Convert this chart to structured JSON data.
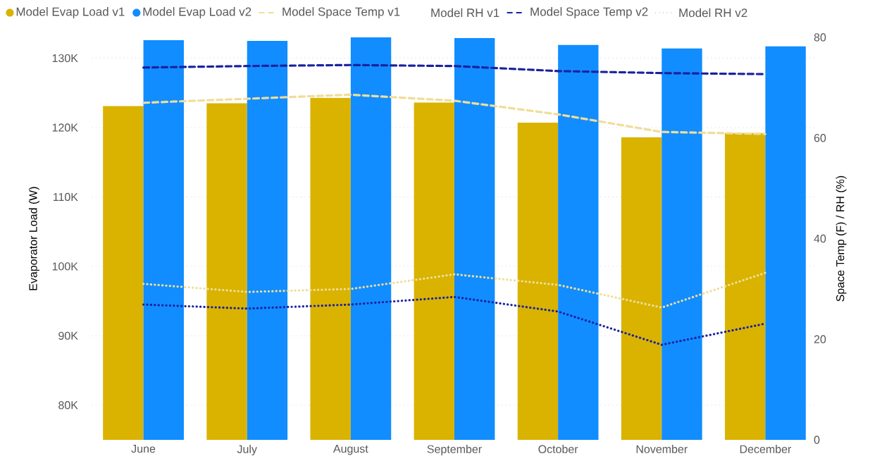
{
  "chart_data": {
    "type": "bar",
    "categories": [
      "June",
      "July",
      "August",
      "September",
      "October",
      "November",
      "December"
    ],
    "ylabel": "Evaporator Load (W)",
    "y2label": "Space Temp (F) / RH (%)",
    "ylim": [
      75000,
      133000
    ],
    "yticks": [
      {
        "value": 80000,
        "label": "80K"
      },
      {
        "value": 90000,
        "label": "90K"
      },
      {
        "value": 100000,
        "label": "100K"
      },
      {
        "value": 110000,
        "label": "110K"
      },
      {
        "value": 120000,
        "label": "120K"
      },
      {
        "value": 130000,
        "label": "130K"
      }
    ],
    "y2lim": [
      0,
      80
    ],
    "y2ticks": [
      0,
      20,
      40,
      60,
      80
    ],
    "grid": "y",
    "legend": "top left",
    "marker": "none",
    "series": [
      {
        "name": "Model Evap Load v1",
        "color": "#d9b300",
        "values": [
          123100,
          123500,
          124300,
          123600,
          120700,
          118600,
          119200
        ]
      },
      {
        "name": "Model Evap Load v2",
        "color": "#118dff",
        "values": [
          132600,
          132500,
          133000,
          132900,
          131900,
          131400,
          131700
        ]
      },
      {
        "name": "Model Space Temp v1",
        "type": "line",
        "axis": "y2",
        "line_style": "dashed",
        "color": "#f0dd99",
        "values": [
          67.0,
          67.8,
          68.6,
          67.4,
          64.7,
          61.2,
          60.8
        ]
      },
      {
        "name": "Model RH v1",
        "type": "line",
        "axis": "y2",
        "line_style": "dotted",
        "color": "#f0dd99",
        "values": [
          31.0,
          29.4,
          30.0,
          32.9,
          30.8,
          26.3,
          33.2
        ]
      },
      {
        "name": "Model Space Temp v2",
        "type": "line",
        "axis": "y2",
        "line_style": "dashed",
        "color": "#1a22a0",
        "values": [
          74.0,
          74.3,
          74.5,
          74.3,
          73.3,
          72.9,
          72.7
        ]
      },
      {
        "name": "Model RH v2",
        "type": "line",
        "axis": "y2",
        "line_style": "dotted",
        "color": "#1a22a0",
        "values": [
          26.9,
          26.1,
          26.9,
          28.4,
          25.5,
          18.9,
          23.1
        ]
      }
    ]
  }
}
